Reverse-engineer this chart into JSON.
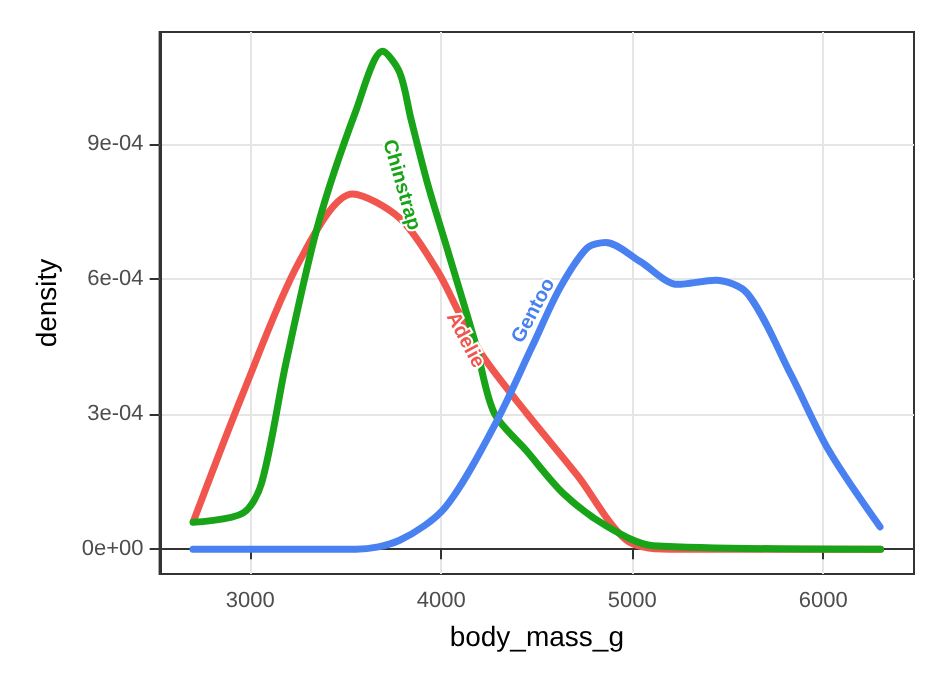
{
  "chart_data": {
    "type": "line",
    "xlabel": "body_mass_g",
    "ylabel": "density",
    "xlim": [
      2525,
      6475
    ],
    "xticks": [
      3000,
      4000,
      5000,
      6000
    ],
    "ylim": [
      -5.5e-05,
      0.00115
    ],
    "yticks": [
      {
        "value": 0,
        "label": "0e+00"
      },
      {
        "value": 0.0003,
        "label": "3e-04"
      },
      {
        "value": 0.0006,
        "label": "6e-04"
      },
      {
        "value": 0.0009,
        "label": "9e-04"
      }
    ],
    "grid": true,
    "legend": false,
    "marker": "none",
    "line_style": "solid",
    "series": [
      {
        "name": "Adelie",
        "color": "#f0564d",
        "x": [
          2703,
          2960,
          3257,
          3535,
          3782,
          3980,
          4100,
          4218,
          4446,
          4713,
          4970,
          5200,
          6300
        ],
        "values": [
          6.3e-05,
          0.000345,
          0.00064,
          0.00079,
          0.000736,
          0.000619,
          0.00052,
          0.000429,
          0.000303,
          0.000164,
          2e-05,
          0,
          0
        ]
      },
      {
        "name": "Chinstrap",
        "color": "#19a319",
        "x": [
          2700,
          2960,
          3059,
          3188,
          3356,
          3554,
          3693,
          3782,
          3842,
          3930,
          4030,
          4178,
          4277,
          4446,
          4644,
          4871,
          5109,
          6300
        ],
        "values": [
          6e-05,
          8e-05,
          0.000147,
          0.000417,
          0.000724,
          0.000976,
          0.001107,
          0.00106,
          0.000955,
          0.00081,
          0.000669,
          0.000459,
          0.000303,
          0.000219,
          0.000122,
          5e-05,
          8e-06,
          0
        ]
      },
      {
        "name": "Gentoo",
        "color": "#4a81f0",
        "x": [
          2700,
          3554,
          3782,
          4020,
          4277,
          4475,
          4620,
          4762,
          4861,
          5040,
          5238,
          5436,
          5604,
          5832,
          6030,
          6297
        ],
        "values": [
          0,
          0,
          2e-05,
          9.3e-05,
          0.000274,
          0.00045,
          0.00058,
          0.000669,
          0.000682,
          0.00064,
          0.000589,
          0.000598,
          0.000568,
          0.000387,
          0.000219,
          5e-05
        ]
      }
    ]
  }
}
